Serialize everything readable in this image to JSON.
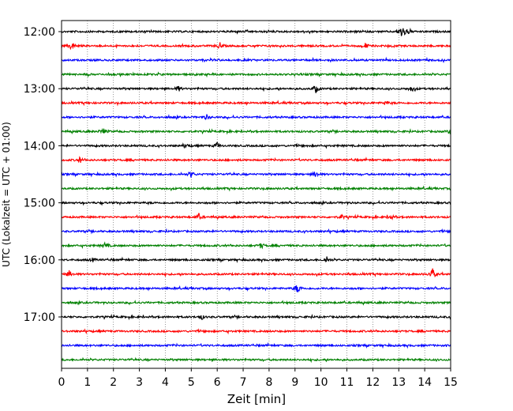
{
  "chart_data": {
    "type": "line",
    "title": "",
    "xlabel": "Zeit  [min]",
    "ylabel": "UTC (Lokalzeit = UTC + 01:00)",
    "xlim": [
      0,
      15
    ],
    "x_ticks": [
      0,
      1,
      2,
      3,
      4,
      5,
      6,
      7,
      8,
      9,
      10,
      11,
      12,
      13,
      14,
      15
    ],
    "x_tick_labels": [
      "0",
      "1",
      "2",
      "3",
      "4",
      "5",
      "6",
      "7",
      "8",
      "9",
      "10",
      "11",
      "12",
      "13",
      "14",
      "15"
    ],
    "y_tick_labels": [
      "12:00",
      "13:00",
      "14:00",
      "15:00",
      "16:00",
      "17:00"
    ],
    "grid": "vertical-dotted",
    "trace_interval_minutes": 15,
    "trace_colors": [
      "#000000",
      "#ff0000",
      "#0000ff",
      "#008000"
    ],
    "traces": [
      {
        "start": "12:00",
        "events": [
          {
            "x": 13.1,
            "amp": 1.0
          },
          {
            "x": 13.3,
            "amp": 0.8
          }
        ]
      },
      {
        "start": "12:15",
        "events": [
          {
            "x": 0.4,
            "amp": 0.9
          },
          {
            "x": 6.1,
            "amp": 0.6
          },
          {
            "x": 11.7,
            "amp": 0.5
          }
        ]
      },
      {
        "start": "12:30",
        "events": []
      },
      {
        "start": "12:45",
        "events": []
      },
      {
        "start": "13:00",
        "events": [
          {
            "x": 4.5,
            "amp": 0.5
          },
          {
            "x": 9.8,
            "amp": 0.7
          },
          {
            "x": 13.5,
            "amp": 0.5
          }
        ]
      },
      {
        "start": "13:15",
        "events": [
          {
            "x": 12.5,
            "amp": 0.3
          }
        ]
      },
      {
        "start": "13:30",
        "events": [
          {
            "x": 5.6,
            "amp": 0.4
          }
        ]
      },
      {
        "start": "13:45",
        "events": [
          {
            "x": 1.6,
            "amp": 0.6
          },
          {
            "x": 15.0,
            "amp": 0.5
          }
        ]
      },
      {
        "start": "14:00",
        "events": [
          {
            "x": 6.0,
            "amp": 0.5
          },
          {
            "x": 4.8,
            "amp": 0.3
          }
        ]
      },
      {
        "start": "14:15",
        "events": [
          {
            "x": 0.7,
            "amp": 0.5
          }
        ]
      },
      {
        "start": "14:30",
        "events": [
          {
            "x": 5.0,
            "amp": 0.5
          },
          {
            "x": 9.8,
            "amp": 0.6
          }
        ]
      },
      {
        "start": "14:45",
        "events": []
      },
      {
        "start": "15:00",
        "events": []
      },
      {
        "start": "15:15",
        "events": [
          {
            "x": 5.3,
            "amp": 0.5
          },
          {
            "x": 10.8,
            "amp": 0.4
          },
          {
            "x": 12.7,
            "amp": 0.4
          }
        ]
      },
      {
        "start": "15:30",
        "events": []
      },
      {
        "start": "15:45",
        "events": [
          {
            "x": 1.7,
            "amp": 0.6
          },
          {
            "x": 7.7,
            "amp": 0.5
          }
        ]
      },
      {
        "start": "16:00",
        "events": [
          {
            "x": 10.2,
            "amp": 0.6
          },
          {
            "x": 1.2,
            "amp": 0.3
          }
        ]
      },
      {
        "start": "16:15",
        "events": [
          {
            "x": 0.3,
            "amp": 0.6
          },
          {
            "x": 14.3,
            "amp": 1.0
          }
        ]
      },
      {
        "start": "16:30",
        "events": [
          {
            "x": 9.1,
            "amp": 0.9
          }
        ]
      },
      {
        "start": "16:45",
        "events": []
      },
      {
        "start": "17:00",
        "events": [
          {
            "x": 5.4,
            "amp": 0.4
          }
        ]
      },
      {
        "start": "17:15",
        "events": []
      },
      {
        "start": "17:30",
        "events": []
      },
      {
        "start": "17:45",
        "events": []
      }
    ]
  }
}
